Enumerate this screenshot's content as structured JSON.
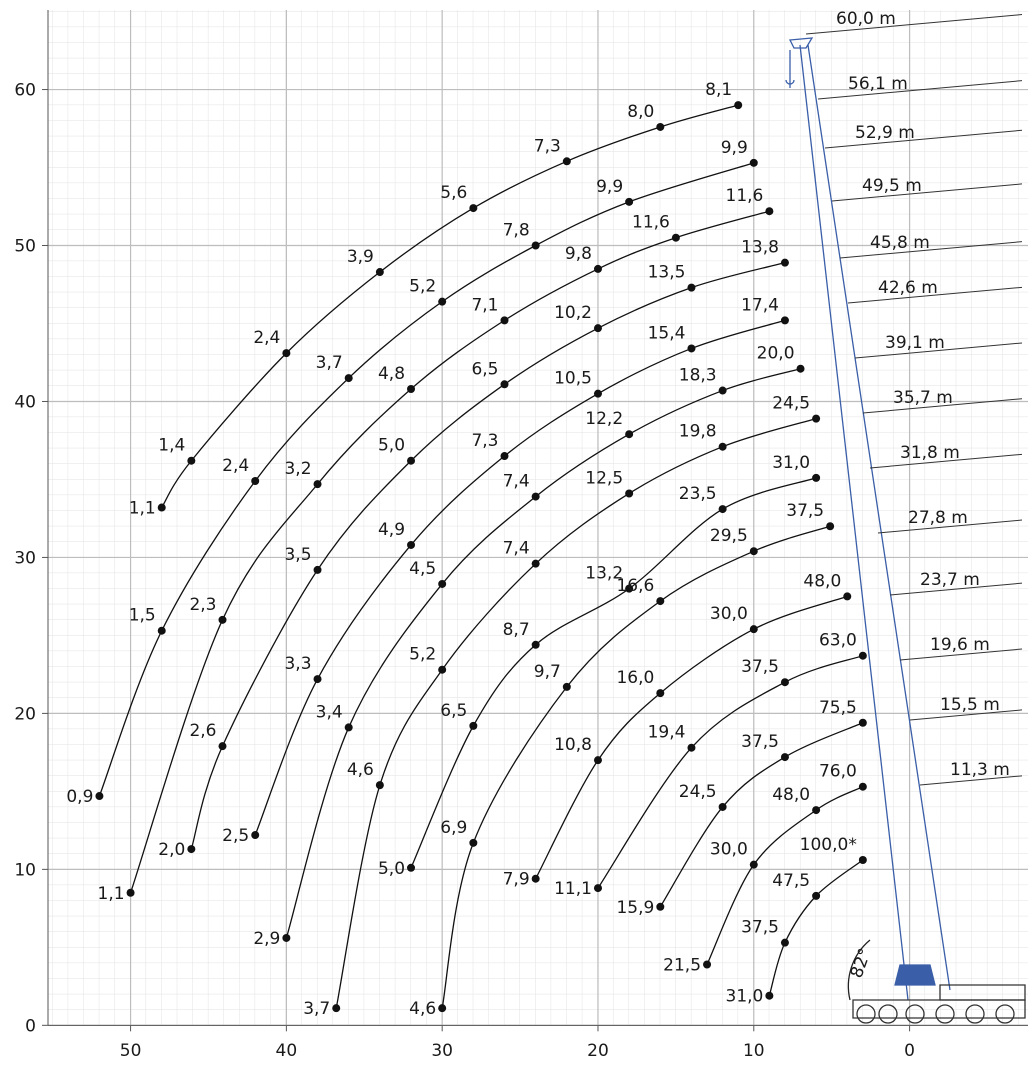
{
  "chart_data": {
    "type": "line",
    "xlim": [
      55.3,
      -7.6
    ],
    "ylim": [
      -0.3,
      65.1
    ],
    "xticks": [
      50,
      40,
      30,
      20,
      10,
      0
    ],
    "yticks": [
      0,
      10,
      20,
      30,
      40,
      50,
      60
    ],
    "grid": true,
    "color": "#111111",
    "boom_color": "#3a5ea8",
    "boom_angle_label": "82°",
    "series": [
      {
        "name": "60,0 m",
        "x": [
          48,
          46.1,
          40,
          34,
          28,
          22,
          16,
          11
        ],
        "values": [
          33.2,
          36.2,
          43.1,
          48.3,
          52.4,
          55.4,
          57.6,
          59.0
        ],
        "load_labels": [
          "1,1",
          "1,4",
          "2,4",
          "3,9",
          "5,6",
          "7,3",
          "8,0",
          "8,1"
        ]
      },
      {
        "name": "56,1 m",
        "x": [
          52,
          48,
          42,
          36,
          30,
          24,
          18,
          10
        ],
        "values": [
          14.7,
          25.3,
          34.9,
          41.5,
          46.4,
          50.0,
          52.8,
          55.3
        ],
        "load_labels": [
          "0,9",
          "1,5",
          "2,4",
          "3,7",
          "5,2",
          "7,8",
          "9,9",
          "9,9"
        ]
      },
      {
        "name": "52,9 m",
        "x": [
          50,
          44.1,
          38,
          32,
          26,
          20,
          15,
          9
        ],
        "values": [
          8.5,
          26.0,
          34.7,
          40.8,
          45.2,
          48.5,
          50.5,
          52.2
        ],
        "load_labels": [
          "1,1",
          "2,3",
          "3,2",
          "4,8",
          "7,1",
          "9,8",
          "11,6",
          "11,6"
        ]
      },
      {
        "name": "49,5 m",
        "x": [
          46.1,
          44.1,
          38,
          32,
          26,
          20,
          14,
          8
        ],
        "values": [
          11.3,
          17.9,
          29.2,
          36.2,
          41.1,
          44.7,
          47.3,
          48.9
        ],
        "load_labels": [
          "2,0",
          "2,6",
          "3,5",
          "5,0",
          "6,5",
          "10,2",
          "13,5",
          "13,8"
        ]
      },
      {
        "name": "45,8 m",
        "x": [
          42,
          38,
          32,
          26,
          20,
          14,
          8
        ],
        "values": [
          12.2,
          22.2,
          30.8,
          36.5,
          40.5,
          43.4,
          45.2
        ],
        "load_labels": [
          "2,5",
          "3,3",
          "4,9",
          "7,3",
          "10,5",
          "15,4",
          "17,4"
        ]
      },
      {
        "name": "42,6 m",
        "x": [
          40,
          36,
          30,
          24,
          18,
          12,
          7
        ],
        "values": [
          5.6,
          19.1,
          28.3,
          33.9,
          37.9,
          40.7,
          42.1
        ],
        "load_labels": [
          "2,9",
          "3,4",
          "4,5",
          "7,4",
          "12,2",
          "18,3",
          "20,0"
        ]
      },
      {
        "name": "39,1 m",
        "x": [
          36.8,
          34,
          30,
          24,
          18,
          12,
          6
        ],
        "values": [
          1.1,
          15.4,
          22.8,
          29.6,
          34.1,
          37.1,
          38.9
        ],
        "load_labels": [
          "3,7",
          "4,6",
          "5,2",
          "7,4",
          "12,5",
          "19,8",
          "24,5"
        ]
      },
      {
        "name": "35,7 m",
        "x": [
          32,
          28,
          24,
          18,
          12,
          6
        ],
        "values": [
          10.1,
          19.2,
          24.4,
          28.0,
          33.1,
          35.1
        ],
        "load_labels": [
          "5,0",
          "6,5",
          "8,7",
          "13,2",
          "23,5",
          "31,0"
        ]
      },
      {
        "name": "31,8 m",
        "x": [
          30,
          28,
          22,
          16,
          10,
          5.1
        ],
        "values": [
          1.1,
          11.7,
          21.7,
          27.2,
          30.4,
          32.0
        ],
        "load_labels": [
          "4,6",
          "6,9",
          "9,7",
          "16,6",
          "29,5",
          "37,5"
        ]
      },
      {
        "name": "27,8 m",
        "x": [
          24,
          20,
          16,
          10,
          4
        ],
        "values": [
          9.4,
          17.0,
          21.3,
          25.4,
          27.5
        ],
        "load_labels": [
          "7,9",
          "10,8",
          "16,0",
          "30,0",
          "48,0"
        ]
      },
      {
        "name": "23,7 m",
        "x": [
          20,
          14,
          8,
          3
        ],
        "values": [
          8.8,
          17.8,
          22.0,
          23.7
        ],
        "load_labels": [
          "11,1",
          "19,4",
          "37,5",
          "63,0"
        ]
      },
      {
        "name": "19,6 m",
        "x": [
          16,
          12,
          8,
          3
        ],
        "values": [
          7.6,
          14.0,
          17.2,
          19.4
        ],
        "load_labels": [
          "15,9",
          "24,5",
          "37,5",
          "75,5"
        ]
      },
      {
        "name": "15,5 m",
        "x": [
          13,
          10,
          6,
          3
        ],
        "values": [
          3.9,
          10.3,
          13.8,
          15.3
        ],
        "load_labels": [
          "21,5",
          "30,0",
          "48,0",
          "76,0"
        ]
      },
      {
        "name": "11,3 m",
        "x": [
          9,
          8,
          6,
          3
        ],
        "values": [
          1.9,
          5.3,
          8.3,
          10.6
        ],
        "load_labels": [
          "31,0",
          "37,5",
          "47,5",
          "100,0*"
        ]
      }
    ]
  }
}
